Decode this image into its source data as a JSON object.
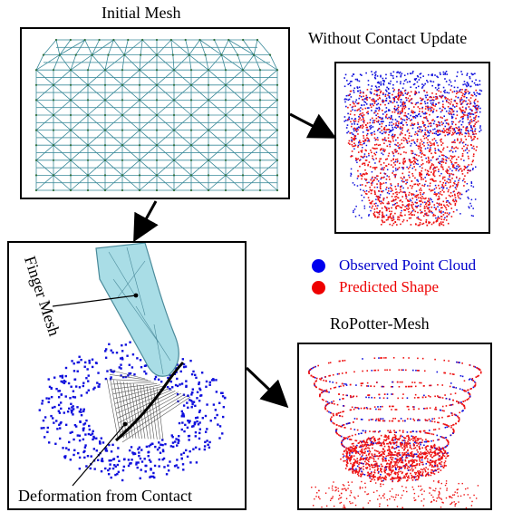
{
  "titles": {
    "initial_mesh": "Initial Mesh",
    "without_contact": "Without Contact Update",
    "ropotter": "RoPotter-Mesh"
  },
  "annotations": {
    "finger_mesh": "Finger Mesh",
    "deformation": "Deformation from Contact"
  },
  "legend": [
    {
      "label": "Observed Point Cloud",
      "color": "#0000ee"
    },
    {
      "label": "Predicted Shape",
      "color": "#ee0000"
    }
  ],
  "colors": {
    "mesh_line": "#3a8a9a",
    "mesh_node": "#2f6f3a",
    "finger_fill": "#a9dde6",
    "finger_stroke": "#4a8a9a",
    "observed": "#1010dd",
    "predicted": "#ee1111"
  }
}
